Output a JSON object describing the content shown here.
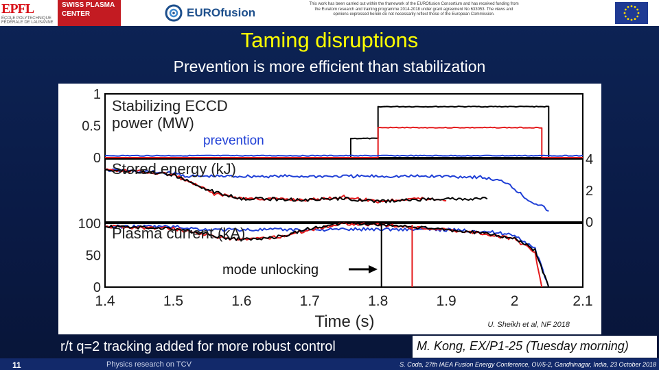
{
  "header": {
    "epfl_mark": "EPFL",
    "epfl_sub": "ÉCOLE POLYTECHNIQUE FÉDÉRALE DE LAUSANNE",
    "spc_line1": "SWISS PLASMA",
    "spc_line2": "CENTER",
    "eurofusion": "EUROfusion",
    "funding_text": "This work has been carried out within the framework of the EUROfusion Consortium and has received funding from the Euratom research and training programme 2014-2018 under grant agreement No 633053. The views and opinions expressed herein do not necessarily reflect those of the European Commission."
  },
  "slide": {
    "title": "Taming disruptions",
    "subtitle": "Prevention is more efficient than stabilization",
    "conclusion": "r/t q=2 tracking added for more robust control",
    "reference": "M. Kong, EX/P1-25 (Tuesday morning)",
    "page_number": "11",
    "footer_left": "Physics research on TCV",
    "footer_right": "S. Coda, 27th IAEA Fusion Energy Conference, OV/5-2, Gandhinagar, India, 23 October 2018"
  },
  "colors": {
    "title": "#ffff00",
    "series_black": "#000000",
    "series_red": "#e41a1c",
    "series_blue": "#1f3fd6",
    "annotation_blue": "#1f3fd6"
  },
  "chart_data": {
    "type": "line",
    "xlabel": "Time (s)",
    "xlim": [
      1.4,
      2.1
    ],
    "x_ticks": [
      "1.4",
      "1.5",
      "1.6",
      "1.7",
      "1.8",
      "1.9",
      "2",
      "2.1"
    ],
    "citation": "U. Sheikh et al, NF 2018",
    "panels": [
      {
        "title_line1": "Stabilizing ECCD",
        "title_line2": "power (MW)",
        "ylim": [
          0,
          1
        ],
        "left_ticks": [
          "1",
          "0.5",
          "0"
        ],
        "series": [
          {
            "name": "black",
            "x": [
              1.4,
              1.76,
              1.76,
              1.8,
              1.8,
              1.81,
              1.81,
              2.05,
              2.05,
              2.1
            ],
            "y": [
              0,
              0,
              0.3,
              0.3,
              0.8,
              0.8,
              0.8,
              0.8,
              0,
              0
            ]
          },
          {
            "name": "red",
            "x": [
              1.4,
              1.8,
              1.8,
              2.04,
              2.04,
              2.1
            ],
            "y": [
              0,
              0,
              0.47,
              0.47,
              0,
              0
            ]
          },
          {
            "name": "blue",
            "x": [
              1.4,
              2.1
            ],
            "y": [
              0.03,
              0.03
            ]
          }
        ],
        "annotation": "prevention"
      },
      {
        "title": "Stored energy (kJ)",
        "ylim": [
          0,
          4
        ],
        "right_ticks": [
          "4",
          "2",
          "0"
        ],
        "series": [
          {
            "name": "blue",
            "x": [
              1.4,
              1.45,
              1.5,
              1.52,
              1.6,
              1.7,
              1.8,
              1.9,
              1.95,
              1.99,
              2.0,
              2.02,
              2.04,
              2.05
            ],
            "y": [
              3.3,
              3.2,
              3.1,
              2.9,
              2.9,
              2.9,
              2.9,
              2.9,
              2.85,
              2.5,
              2.1,
              1.4,
              1.0,
              0.7
            ]
          },
          {
            "name": "red",
            "x": [
              1.4,
              1.45,
              1.5,
              1.52,
              1.56,
              1.6,
              1.7,
              1.75,
              1.8,
              1.85,
              1.9
            ],
            "y": [
              3.3,
              3.2,
              3.0,
              2.6,
              1.8,
              1.5,
              1.4,
              1.6,
              1.3,
              1.5,
              1.4
            ]
          },
          {
            "name": "black",
            "x": [
              1.4,
              1.45,
              1.5,
              1.52,
              1.56,
              1.6,
              1.7,
              1.75,
              1.8,
              1.85,
              1.9,
              1.93,
              1.95,
              1.96
            ],
            "y": [
              3.3,
              3.2,
              3.0,
              2.6,
              1.9,
              1.5,
              1.4,
              1.5,
              1.3,
              1.4,
              1.5,
              1.4,
              1.5,
              1.5
            ]
          }
        ]
      },
      {
        "title": "Plasma current (kA)",
        "ylim": [
          0,
          100
        ],
        "left_ticks": [
          "100",
          "50",
          "0"
        ],
        "series": [
          {
            "name": "blue",
            "x": [
              1.4,
              1.5,
              1.55,
              1.6,
              1.7,
              1.8,
              1.9,
              1.95,
              2.0,
              2.03,
              2.05
            ],
            "y": [
              95,
              95,
              90,
              90,
              90,
              91,
              90,
              88,
              82,
              60,
              0
            ]
          },
          {
            "name": "red",
            "x": [
              1.4,
              1.5,
              1.55,
              1.58,
              1.62,
              1.66,
              1.7,
              1.75,
              1.8,
              1.9,
              1.95,
              2.0,
              2.03,
              2.04
            ],
            "y": [
              95,
              92,
              82,
              75,
              75,
              80,
              90,
              100,
              98,
              90,
              85,
              75,
              55,
              0
            ]
          },
          {
            "name": "black",
            "x": [
              1.4,
              1.5,
              1.55,
              1.58,
              1.62,
              1.66,
              1.7,
              1.75,
              1.8,
              1.9,
              1.95,
              2.0,
              2.03,
              2.05
            ],
            "y": [
              95,
              92,
              83,
              76,
              75,
              80,
              92,
              101,
              98,
              90,
              85,
              77,
              58,
              0
            ]
          }
        ],
        "markers": [
          {
            "color": "black",
            "x": 1.805
          },
          {
            "color": "red",
            "x": 1.85
          }
        ],
        "annotation": "mode unlocking"
      }
    ]
  }
}
